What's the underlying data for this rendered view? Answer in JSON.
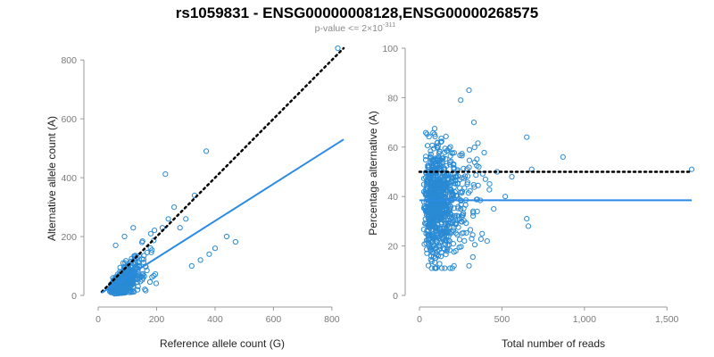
{
  "title": "rs1059831 - ENSG00000008128,ENSG00000268575",
  "subtitle": {
    "prefix": "p-value <= 2×10",
    "exponent": "-311"
  },
  "colors": {
    "points": "#2a8ad4",
    "fit": "#2a8ae6",
    "reference": "#000000"
  },
  "chart_data": [
    {
      "type": "scatter",
      "id": "left",
      "xlabel": "Reference allele count (G)",
      "ylabel": "Alternative allele count (A)",
      "xlim": [
        0,
        840
      ],
      "ylim": [
        0,
        840
      ],
      "xticks": [
        0,
        200,
        400,
        600,
        800
      ],
      "yticks": [
        0,
        200,
        400,
        600,
        800
      ],
      "xtick_labels": [
        "0",
        "200",
        "400",
        "600",
        "800"
      ],
      "ytick_labels": [
        "0",
        "200",
        "400",
        "600",
        "800"
      ],
      "reference_line": {
        "style": "dotted",
        "from": [
          0,
          0
        ],
        "to": [
          840,
          840
        ]
      },
      "fit_line": {
        "style": "solid",
        "from": [
          0,
          0
        ],
        "to": [
          840,
          530
        ]
      },
      "highlight_points": [
        [
          820,
          840
        ],
        [
          230,
          412
        ],
        [
          370,
          490
        ],
        [
          330,
          340
        ],
        [
          260,
          300
        ],
        [
          470,
          182
        ],
        [
          440,
          200
        ],
        [
          220,
          230
        ],
        [
          180,
          210
        ],
        [
          150,
          180
        ],
        [
          300,
          260
        ],
        [
          280,
          230
        ],
        [
          400,
          160
        ],
        [
          380,
          140
        ],
        [
          350,
          120
        ],
        [
          320,
          100
        ],
        [
          120,
          230
        ],
        [
          90,
          200
        ],
        [
          60,
          170
        ],
        [
          240,
          260
        ]
      ],
      "cluster": {
        "n": 650,
        "x_center": 60,
        "x_spread": 40,
        "ratio_mean": 0.55,
        "ratio_spread": 0.25
      }
    },
    {
      "type": "scatter",
      "id": "right",
      "xlabel": "Total number of reads",
      "ylabel": "Percentage alternative (A)",
      "xlim": [
        0,
        1650
      ],
      "ylim": [
        0,
        100
      ],
      "xticks": [
        0,
        500,
        1000,
        1500
      ],
      "yticks": [
        0,
        20,
        40,
        60,
        80,
        100
      ],
      "xtick_labels": [
        "0",
        "500",
        "1,000",
        "1,500"
      ],
      "ytick_labels": [
        "0",
        "20",
        "40",
        "60",
        "80",
        "100"
      ],
      "reference_line": {
        "style": "dotted",
        "y": 50
      },
      "fit_line": {
        "style": "solid",
        "y": 38.5
      },
      "highlight_points": [
        [
          1650,
          51
        ],
        [
          870,
          56
        ],
        [
          680,
          51
        ],
        [
          650,
          64
        ],
        [
          650,
          31
        ],
        [
          660,
          28
        ],
        [
          470,
          50
        ],
        [
          400,
          47
        ],
        [
          360,
          52
        ],
        [
          300,
          83
        ],
        [
          250,
          79
        ],
        [
          330,
          70
        ],
        [
          290,
          45
        ],
        [
          520,
          40
        ],
        [
          450,
          35
        ],
        [
          380,
          25
        ],
        [
          560,
          48
        ],
        [
          220,
          18
        ],
        [
          410,
          22
        ],
        [
          300,
          12
        ]
      ],
      "cluster": {
        "n": 850,
        "x_center": 120,
        "x_spread": 80,
        "y_mean": 38.5,
        "y_spread": 11
      }
    }
  ]
}
